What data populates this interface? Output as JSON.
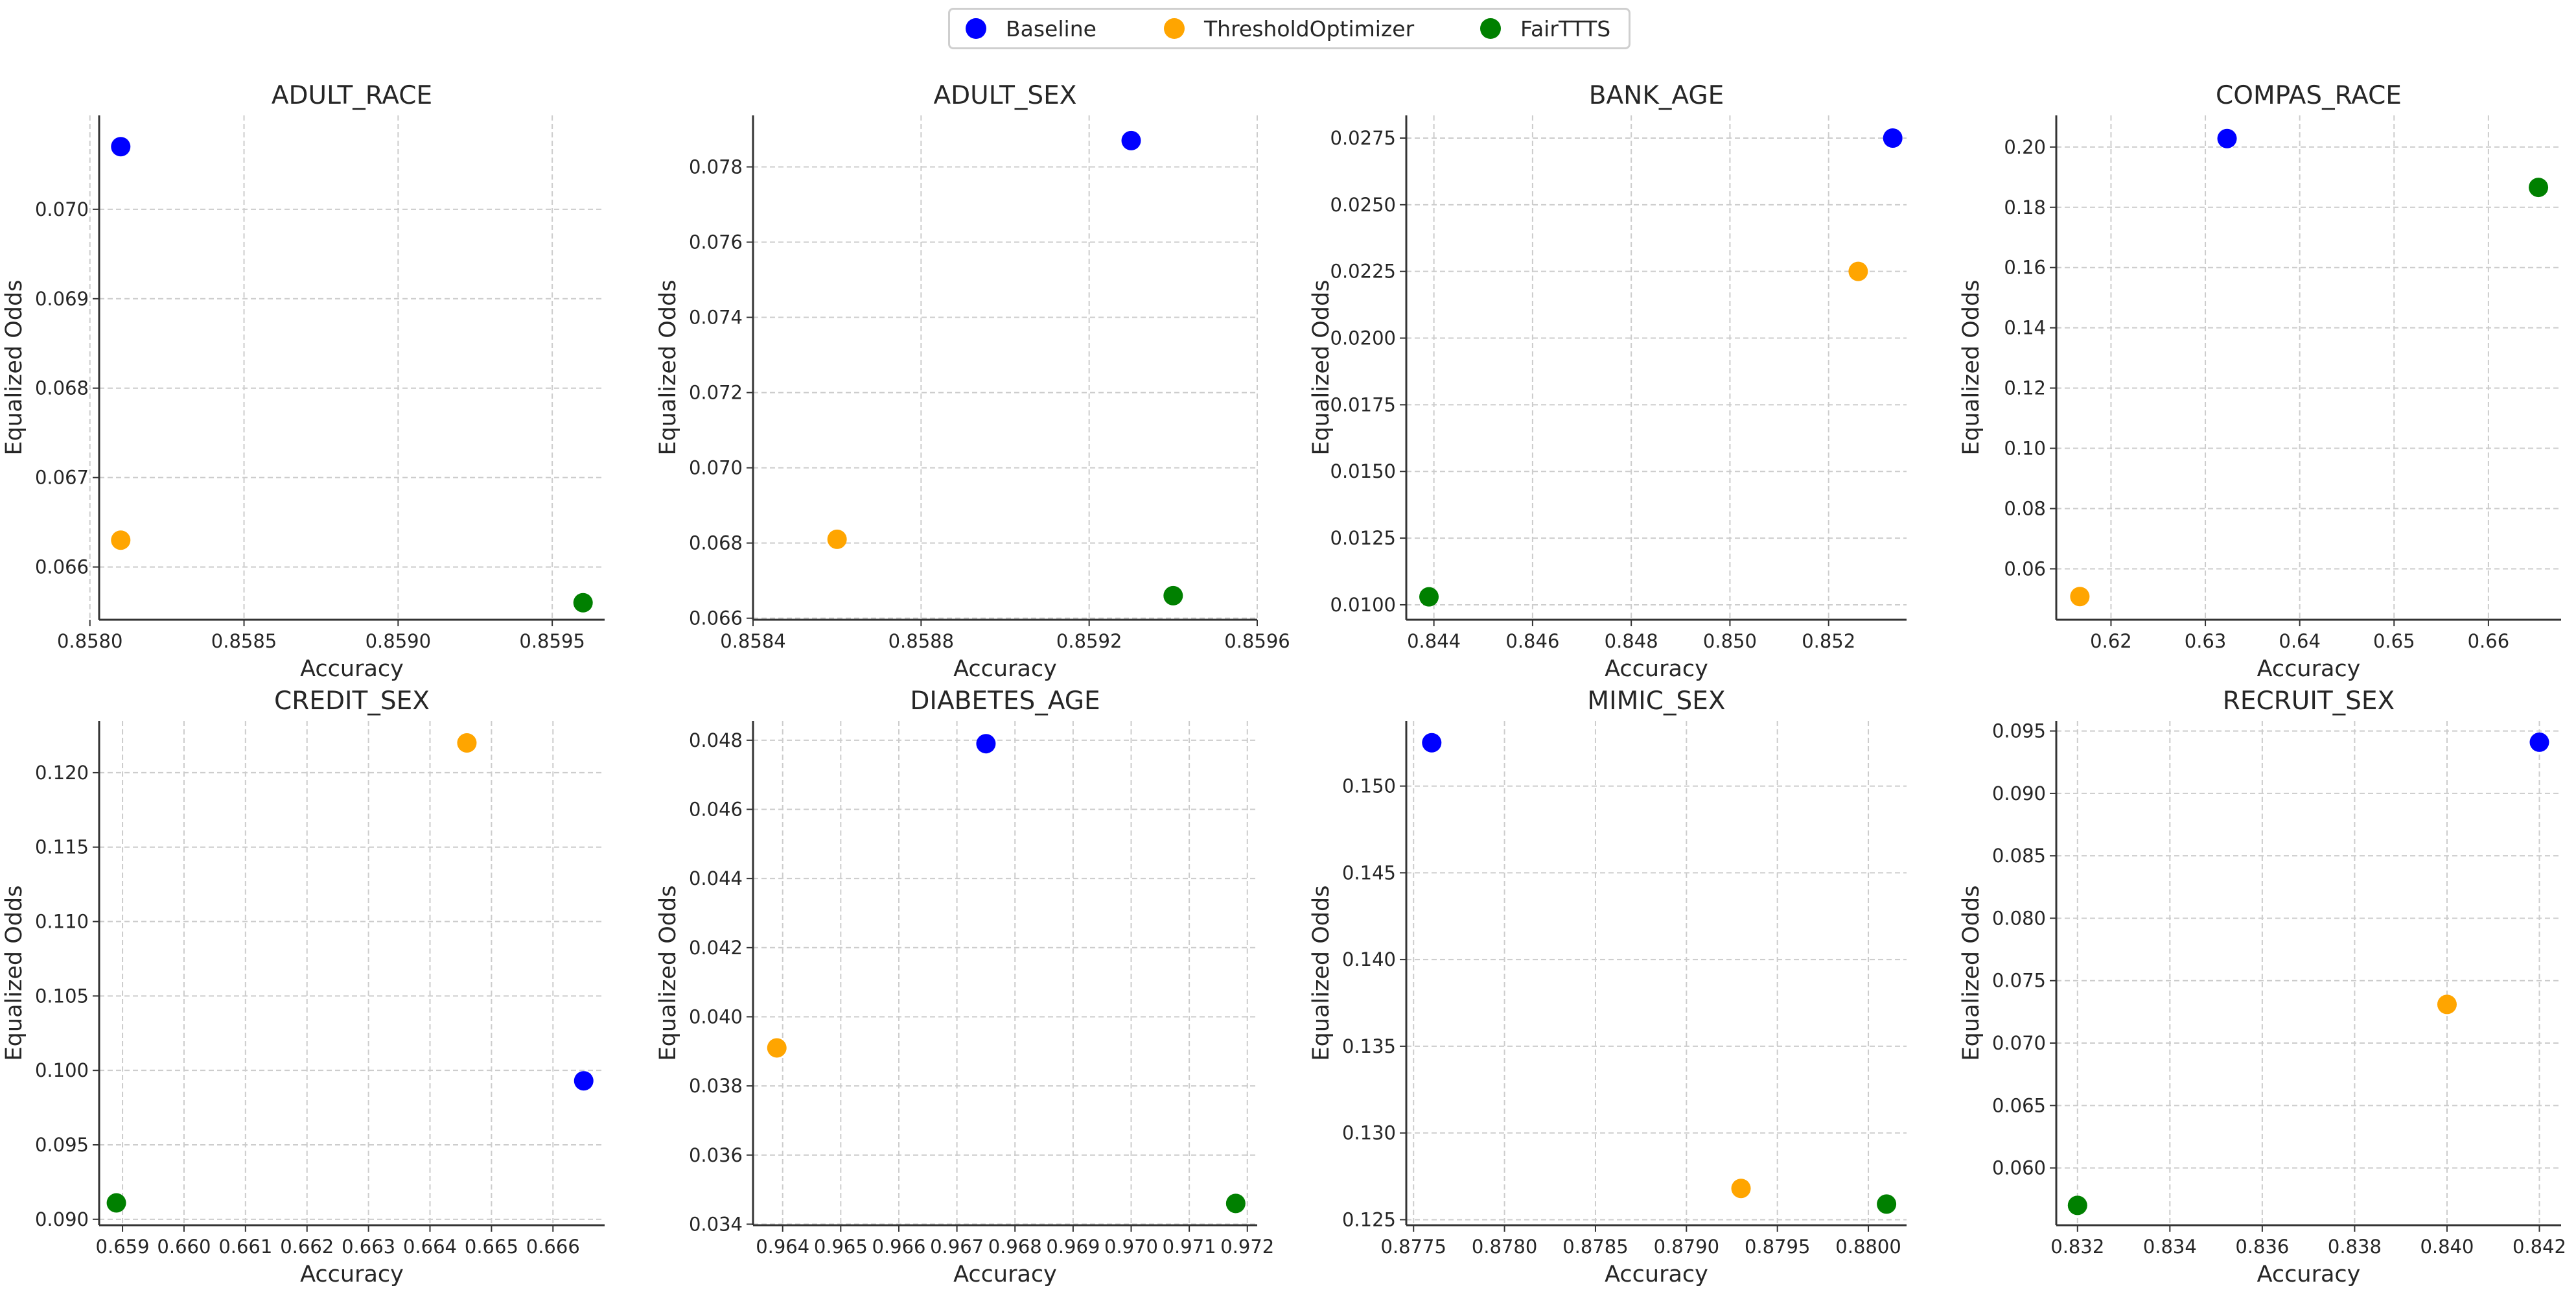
{
  "legend": {
    "items": [
      {
        "label": "Baseline",
        "color": "#0000ff"
      },
      {
        "label": "ThresholdOptimizer",
        "color": "#ffa500"
      },
      {
        "label": "FairTTTS",
        "color": "#008000"
      }
    ]
  },
  "chart_data": [
    {
      "type": "scatter",
      "title": "ADULT_RACE",
      "xlabel": "Accuracy",
      "ylabel": "Equalized Odds",
      "xlim": [
        0.85803,
        0.85967
      ],
      "ylim": [
        0.06541,
        0.07105
      ],
      "xticks": [
        "0.8580",
        "0.8585",
        "0.8590",
        "0.8595"
      ],
      "xtick_values": [
        0.858,
        0.8585,
        0.859,
        0.8595
      ],
      "yticks": [
        "0.066",
        "0.067",
        "0.068",
        "0.069",
        "0.070"
      ],
      "ytick_values": [
        0.066,
        0.067,
        0.068,
        0.069,
        0.07
      ],
      "grid": true,
      "series": [
        {
          "name": "Baseline",
          "color": "#0000ff",
          "x": [
            0.8581
          ],
          "y": [
            0.0707
          ]
        },
        {
          "name": "ThresholdOptimizer",
          "color": "#ffa500",
          "x": [
            0.8581
          ],
          "y": [
            0.0663
          ]
        },
        {
          "name": "FairTTTS",
          "color": "#008000",
          "x": [
            0.8596
          ],
          "y": [
            0.0656
          ]
        }
      ]
    },
    {
      "type": "scatter",
      "title": "ADULT_SEX",
      "xlabel": "Accuracy",
      "ylabel": "Equalized Odds",
      "xlim": [
        0.8584,
        0.8596
      ],
      "ylim": [
        0.06596,
        0.07937
      ],
      "xticks": [
        "0.8584",
        "0.8588",
        "0.8592",
        "0.8596"
      ],
      "xtick_values": [
        0.8584,
        0.8588,
        0.8592,
        0.8596
      ],
      "yticks": [
        "0.066",
        "0.068",
        "0.070",
        "0.072",
        "0.074",
        "0.076",
        "0.078"
      ],
      "ytick_values": [
        0.066,
        0.068,
        0.07,
        0.072,
        0.074,
        0.076,
        0.078
      ],
      "grid": true,
      "series": [
        {
          "name": "Baseline",
          "color": "#0000ff",
          "x": [
            0.8593
          ],
          "y": [
            0.0787
          ]
        },
        {
          "name": "ThresholdOptimizer",
          "color": "#ffa500",
          "x": [
            0.8586
          ],
          "y": [
            0.0681
          ]
        },
        {
          "name": "FairTTTS",
          "color": "#008000",
          "x": [
            0.8594
          ],
          "y": [
            0.0666
          ]
        }
      ]
    },
    {
      "type": "scatter",
      "title": "BANK_AGE",
      "xlabel": "Accuracy",
      "ylabel": "Equalized Odds",
      "xlim": [
        0.84344,
        0.85358
      ],
      "ylim": [
        0.00944,
        0.02835
      ],
      "xticks": [
        "0.844",
        "0.846",
        "0.848",
        "0.850",
        "0.852"
      ],
      "xtick_values": [
        0.844,
        0.846,
        0.848,
        0.85,
        0.852
      ],
      "yticks": [
        "0.0100",
        "0.0125",
        "0.0150",
        "0.0175",
        "0.0200",
        "0.0225",
        "0.0250",
        "0.0275"
      ],
      "ytick_values": [
        0.01,
        0.0125,
        0.015,
        0.0175,
        0.02,
        0.0225,
        0.025,
        0.0275
      ],
      "grid": true,
      "series": [
        {
          "name": "Baseline",
          "color": "#0000ff",
          "x": [
            0.8533
          ],
          "y": [
            0.0275
          ]
        },
        {
          "name": "ThresholdOptimizer",
          "color": "#ffa500",
          "x": [
            0.8526
          ],
          "y": [
            0.0225
          ]
        },
        {
          "name": "FairTTTS",
          "color": "#008000",
          "x": [
            0.8439
          ],
          "y": [
            0.0103
          ]
        }
      ]
    },
    {
      "type": "scatter",
      "title": "COMPAS_RACE",
      "xlabel": "Accuracy",
      "ylabel": "Equalized Odds",
      "xlim": [
        0.6142,
        0.6677
      ],
      "ylim": [
        0.0431,
        0.2105
      ],
      "xticks": [
        "0.62",
        "0.63",
        "0.64",
        "0.65",
        "0.66"
      ],
      "xtick_values": [
        0.62,
        0.63,
        0.64,
        0.65,
        0.66
      ],
      "yticks": [
        "0.06",
        "0.08",
        "0.10",
        "0.12",
        "0.14",
        "0.16",
        "0.18",
        "0.20"
      ],
      "ytick_values": [
        0.06,
        0.08,
        0.1,
        0.12,
        0.14,
        0.16,
        0.18,
        0.2
      ],
      "grid": true,
      "series": [
        {
          "name": "Baseline",
          "color": "#0000ff",
          "x": [
            0.6323
          ],
          "y": [
            0.2028
          ]
        },
        {
          "name": "ThresholdOptimizer",
          "color": "#ffa500",
          "x": [
            0.6167
          ],
          "y": [
            0.0508
          ]
        },
        {
          "name": "FairTTTS",
          "color": "#008000",
          "x": [
            0.6653
          ],
          "y": [
            0.1866
          ]
        }
      ]
    },
    {
      "type": "scatter",
      "title": "CREDIT_SEX",
      "xlabel": "Accuracy",
      "ylabel": "Equalized Odds",
      "xlim": [
        0.65862,
        0.66684
      ],
      "ylim": [
        0.0896,
        0.12348
      ],
      "xticks": [
        "0.659",
        "0.660",
        "0.661",
        "0.662",
        "0.663",
        "0.664",
        "0.665",
        "0.666"
      ],
      "xtick_values": [
        0.659,
        0.66,
        0.661,
        0.662,
        0.663,
        0.664,
        0.665,
        0.666
      ],
      "yticks": [
        "0.090",
        "0.095",
        "0.100",
        "0.105",
        "0.110",
        "0.115",
        "0.120"
      ],
      "ytick_values": [
        0.09,
        0.095,
        0.1,
        0.105,
        0.11,
        0.115,
        0.12
      ],
      "grid": true,
      "series": [
        {
          "name": "Baseline",
          "color": "#0000ff",
          "x": [
            0.6665
          ],
          "y": [
            0.0993
          ]
        },
        {
          "name": "ThresholdOptimizer",
          "color": "#ffa500",
          "x": [
            0.6646
          ],
          "y": [
            0.122
          ]
        },
        {
          "name": "FairTTTS",
          "color": "#008000",
          "x": [
            0.6589
          ],
          "y": [
            0.0911
          ]
        }
      ]
    },
    {
      "type": "scatter",
      "title": "DIABETES_AGE",
      "xlabel": "Accuracy",
      "ylabel": "Equalized Odds",
      "xlim": [
        0.96349,
        0.97217
      ],
      "ylim": [
        0.03397,
        0.04856
      ],
      "xticks": [
        "0.964",
        "0.965",
        "0.966",
        "0.967",
        "0.968",
        "0.969",
        "0.970",
        "0.971",
        "0.972"
      ],
      "xtick_values": [
        0.964,
        0.965,
        0.966,
        0.967,
        0.968,
        0.969,
        0.97,
        0.971,
        0.972
      ],
      "yticks": [
        "0.034",
        "0.036",
        "0.038",
        "0.040",
        "0.042",
        "0.044",
        "0.046",
        "0.048"
      ],
      "ytick_values": [
        0.034,
        0.036,
        0.038,
        0.04,
        0.042,
        0.044,
        0.046,
        0.048
      ],
      "grid": true,
      "series": [
        {
          "name": "Baseline",
          "color": "#0000ff",
          "x": [
            0.9675
          ],
          "y": [
            0.0479
          ]
        },
        {
          "name": "ThresholdOptimizer",
          "color": "#ffa500",
          "x": [
            0.9639
          ],
          "y": [
            0.0391
          ]
        },
        {
          "name": "FairTTTS",
          "color": "#008000",
          "x": [
            0.9718
          ],
          "y": [
            0.0346
          ]
        }
      ]
    },
    {
      "type": "scatter",
      "title": "MIMIC_SEX",
      "xlabel": "Accuracy",
      "ylabel": "Equalized Odds",
      "xlim": [
        0.87746,
        0.88021
      ],
      "ylim": [
        0.12468,
        0.15376
      ],
      "xticks": [
        "0.8775",
        "0.8780",
        "0.8785",
        "0.8790",
        "0.8795",
        "0.8800"
      ],
      "xtick_values": [
        0.8775,
        0.878,
        0.8785,
        0.879,
        0.8795,
        0.88
      ],
      "yticks": [
        "0.125",
        "0.130",
        "0.135",
        "0.140",
        "0.145",
        "0.150"
      ],
      "ytick_values": [
        0.125,
        0.13,
        0.135,
        0.14,
        0.145,
        0.15
      ],
      "grid": true,
      "series": [
        {
          "name": "Baseline",
          "color": "#0000ff",
          "x": [
            0.8776
          ],
          "y": [
            0.1525
          ]
        },
        {
          "name": "ThresholdOptimizer",
          "color": "#ffa500",
          "x": [
            0.8793
          ],
          "y": [
            0.1268
          ]
        },
        {
          "name": "FairTTTS",
          "color": "#008000",
          "x": [
            0.8801
          ],
          "y": [
            0.1259
          ]
        }
      ]
    },
    {
      "type": "scatter",
      "title": "RECRUIT_SEX",
      "xlabel": "Accuracy",
      "ylabel": "Equalized Odds",
      "xlim": [
        0.83154,
        0.84247
      ],
      "ylim": [
        0.05541,
        0.09581
      ],
      "xticks": [
        "0.832",
        "0.834",
        "0.836",
        "0.838",
        "0.840",
        "0.842"
      ],
      "xtick_values": [
        0.832,
        0.834,
        0.836,
        0.838,
        0.84,
        0.842
      ],
      "yticks": [
        "0.060",
        "0.065",
        "0.070",
        "0.075",
        "0.080",
        "0.085",
        "0.090",
        "0.095"
      ],
      "ytick_values": [
        0.06,
        0.065,
        0.07,
        0.075,
        0.08,
        0.085,
        0.09,
        0.095
      ],
      "grid": true,
      "series": [
        {
          "name": "Baseline",
          "color": "#0000ff",
          "x": [
            0.842
          ],
          "y": [
            0.0941
          ]
        },
        {
          "name": "ThresholdOptimizer",
          "color": "#ffa500",
          "x": [
            0.84
          ],
          "y": [
            0.0731
          ]
        },
        {
          "name": "FairTTTS",
          "color": "#008000",
          "x": [
            0.832
          ],
          "y": [
            0.057
          ]
        }
      ]
    }
  ]
}
